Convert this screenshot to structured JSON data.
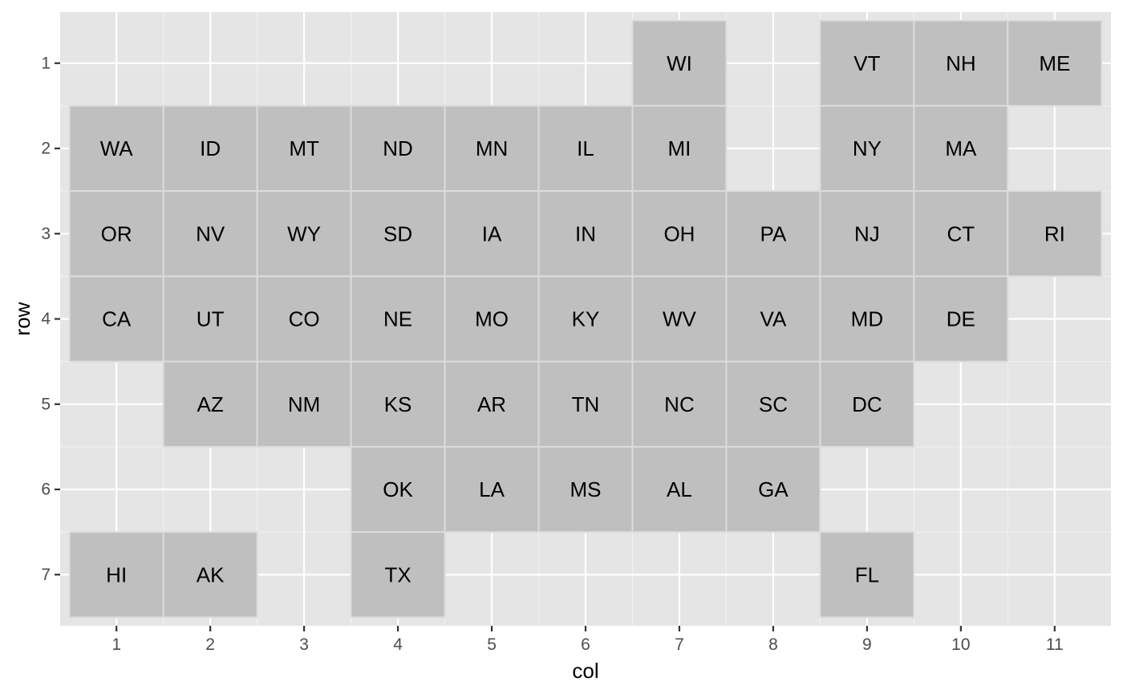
{
  "chart_data": {
    "type": "heatmap",
    "title": "",
    "xlabel": "col",
    "ylabel": "row",
    "xlim": [
      0.4,
      11.6
    ],
    "ylim": [
      0.4,
      7.6
    ],
    "y_reversed": true,
    "x_ticks": [
      "1",
      "2",
      "3",
      "4",
      "5",
      "6",
      "7",
      "8",
      "9",
      "10",
      "11"
    ],
    "y_ticks": [
      "1",
      "2",
      "3",
      "4",
      "5",
      "6",
      "7"
    ],
    "grid": true,
    "legend": "none",
    "colors": {
      "panel_background": "#e5e5e5",
      "grid": "#ffffff",
      "tile_fill": "#bfbfbf",
      "tile_border": "#dcdcdc",
      "label": "#000000"
    },
    "tiles": [
      {
        "state": "WI",
        "col": 7,
        "row": 1
      },
      {
        "state": "VT",
        "col": 9,
        "row": 1
      },
      {
        "state": "NH",
        "col": 10,
        "row": 1
      },
      {
        "state": "ME",
        "col": 11,
        "row": 1
      },
      {
        "state": "WA",
        "col": 1,
        "row": 2
      },
      {
        "state": "ID",
        "col": 2,
        "row": 2
      },
      {
        "state": "MT",
        "col": 3,
        "row": 2
      },
      {
        "state": "ND",
        "col": 4,
        "row": 2
      },
      {
        "state": "MN",
        "col": 5,
        "row": 2
      },
      {
        "state": "IL",
        "col": 6,
        "row": 2
      },
      {
        "state": "MI",
        "col": 7,
        "row": 2
      },
      {
        "state": "NY",
        "col": 9,
        "row": 2
      },
      {
        "state": "MA",
        "col": 10,
        "row": 2
      },
      {
        "state": "OR",
        "col": 1,
        "row": 3
      },
      {
        "state": "NV",
        "col": 2,
        "row": 3
      },
      {
        "state": "WY",
        "col": 3,
        "row": 3
      },
      {
        "state": "SD",
        "col": 4,
        "row": 3
      },
      {
        "state": "IA",
        "col": 5,
        "row": 3
      },
      {
        "state": "IN",
        "col": 6,
        "row": 3
      },
      {
        "state": "OH",
        "col": 7,
        "row": 3
      },
      {
        "state": "PA",
        "col": 8,
        "row": 3
      },
      {
        "state": "NJ",
        "col": 9,
        "row": 3
      },
      {
        "state": "CT",
        "col": 10,
        "row": 3
      },
      {
        "state": "RI",
        "col": 11,
        "row": 3
      },
      {
        "state": "CA",
        "col": 1,
        "row": 4
      },
      {
        "state": "UT",
        "col": 2,
        "row": 4
      },
      {
        "state": "CO",
        "col": 3,
        "row": 4
      },
      {
        "state": "NE",
        "col": 4,
        "row": 4
      },
      {
        "state": "MO",
        "col": 5,
        "row": 4
      },
      {
        "state": "KY",
        "col": 6,
        "row": 4
      },
      {
        "state": "WV",
        "col": 7,
        "row": 4
      },
      {
        "state": "VA",
        "col": 8,
        "row": 4
      },
      {
        "state": "MD",
        "col": 9,
        "row": 4
      },
      {
        "state": "DE",
        "col": 10,
        "row": 4
      },
      {
        "state": "AZ",
        "col": 2,
        "row": 5
      },
      {
        "state": "NM",
        "col": 3,
        "row": 5
      },
      {
        "state": "KS",
        "col": 4,
        "row": 5
      },
      {
        "state": "AR",
        "col": 5,
        "row": 5
      },
      {
        "state": "TN",
        "col": 6,
        "row": 5
      },
      {
        "state": "NC",
        "col": 7,
        "row": 5
      },
      {
        "state": "SC",
        "col": 8,
        "row": 5
      },
      {
        "state": "DC",
        "col": 9,
        "row": 5
      },
      {
        "state": "OK",
        "col": 4,
        "row": 6
      },
      {
        "state": "LA",
        "col": 5,
        "row": 6
      },
      {
        "state": "MS",
        "col": 6,
        "row": 6
      },
      {
        "state": "AL",
        "col": 7,
        "row": 6
      },
      {
        "state": "GA",
        "col": 8,
        "row": 6
      },
      {
        "state": "HI",
        "col": 1,
        "row": 7
      },
      {
        "state": "AK",
        "col": 2,
        "row": 7
      },
      {
        "state": "TX",
        "col": 4,
        "row": 7
      },
      {
        "state": "FL",
        "col": 9,
        "row": 7
      }
    ]
  }
}
